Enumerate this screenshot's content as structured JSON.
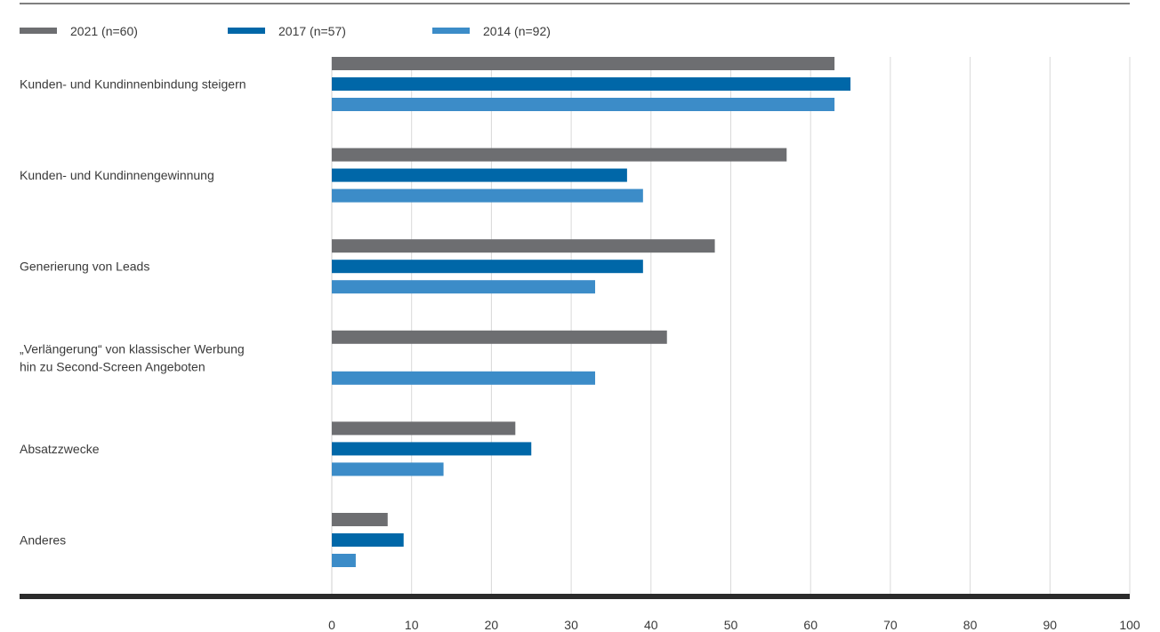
{
  "chart_data": {
    "type": "bar",
    "orientation": "horizontal",
    "categories": [
      [
        "Kunden- und Kundinnenbindung steigern"
      ],
      [
        "Kunden- und Kundinnengewinnung"
      ],
      [
        "Generierung von Leads"
      ],
      [
        "„Verlängerung“ von klassischer Werbung",
        "hin zu Second-Screen Angeboten"
      ],
      [
        "Absatzzwecke"
      ],
      [
        "Anderes"
      ]
    ],
    "series": [
      {
        "name": "2021 (n=60)",
        "color": "#6d6e71",
        "values": [
          63,
          57,
          48,
          42,
          23,
          7
        ]
      },
      {
        "name": "2017 (n=57)",
        "color": "#0067a8",
        "values": [
          65,
          37,
          39,
          null,
          25,
          9
        ]
      },
      {
        "name": "2014 (n=92)",
        "color": "#3c8cc8",
        "values": [
          63,
          39,
          33,
          33,
          14,
          3
        ]
      }
    ],
    "xlim": [
      0,
      100
    ],
    "xticks": [
      "0",
      "10",
      "20",
      "30",
      "40",
      "50",
      "60",
      "70",
      "80",
      "90",
      "100"
    ],
    "grid": true,
    "legend_position": "top-left"
  }
}
